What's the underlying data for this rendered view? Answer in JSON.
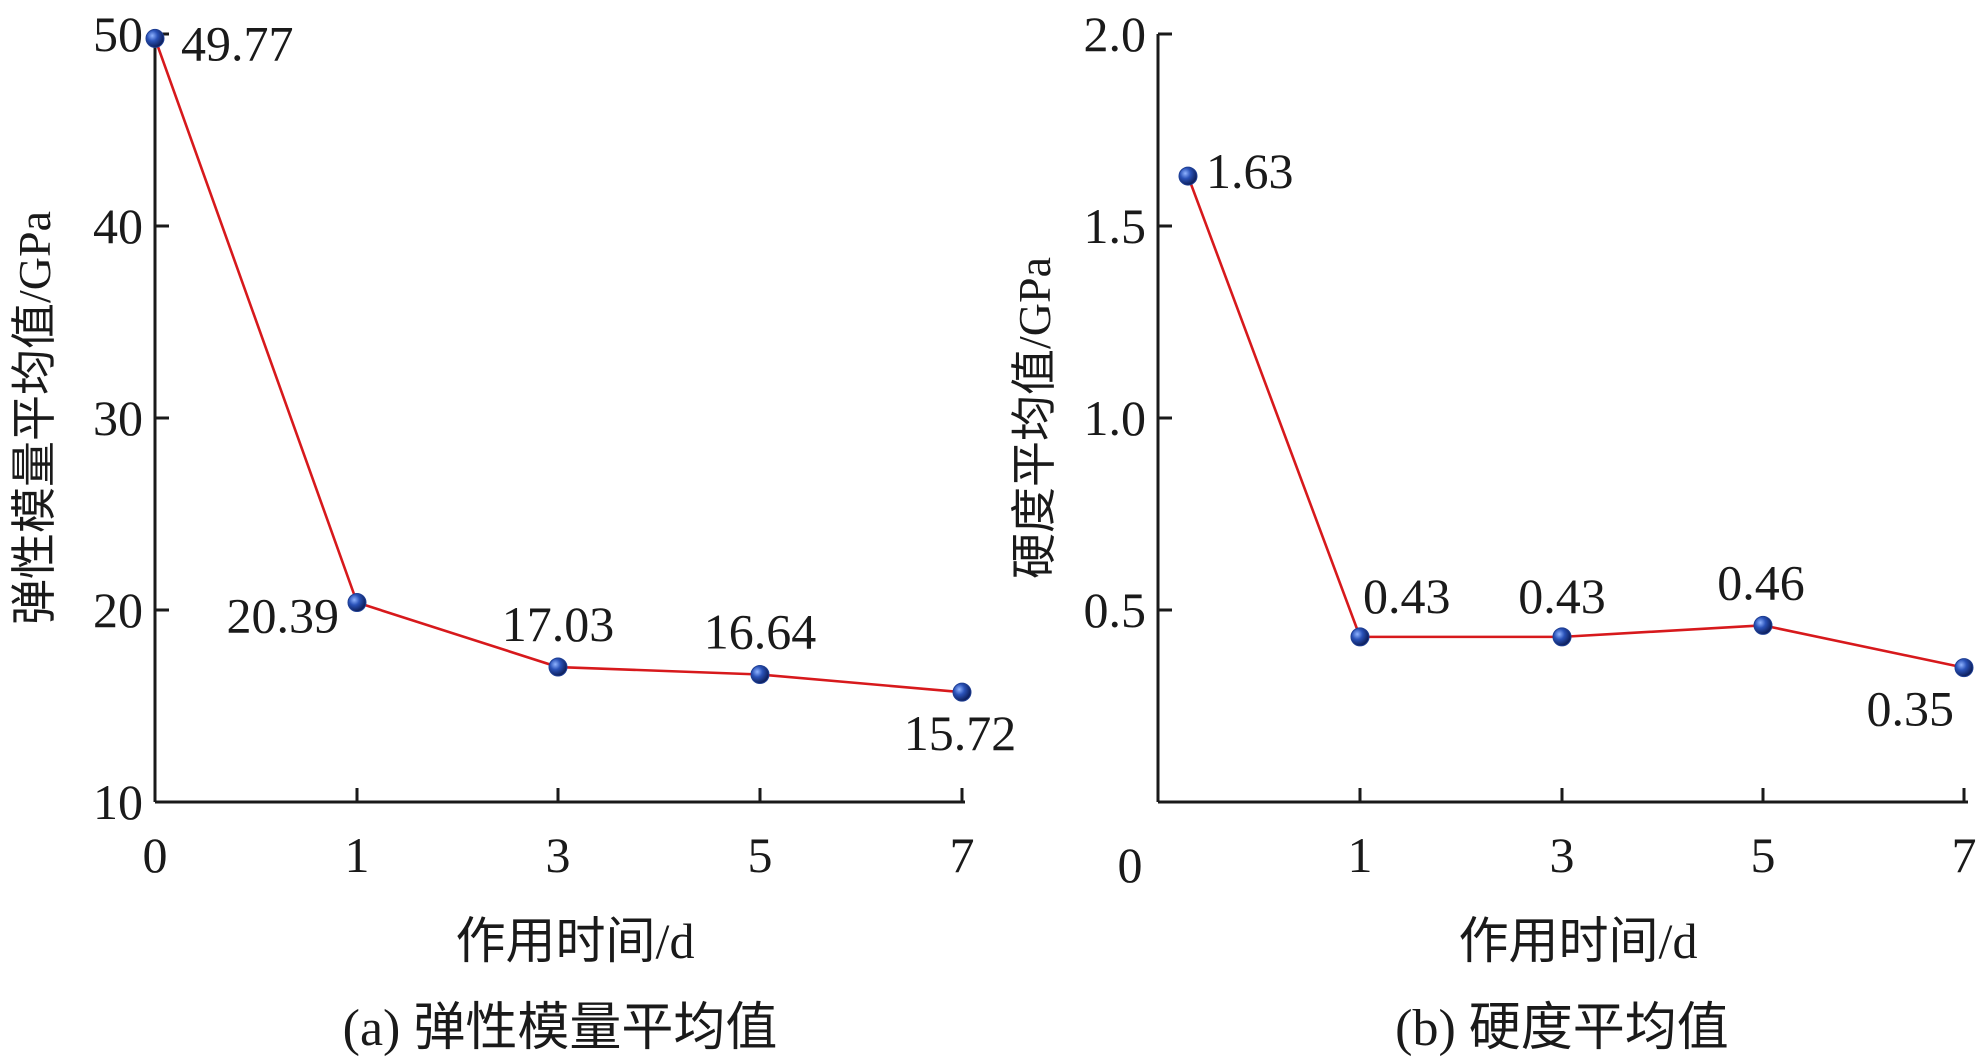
{
  "chart_data": [
    {
      "type": "line",
      "caption": "(a) 弹性模量平均值",
      "xlabel": "作用时间/d",
      "ylabel": "弹性模量平均值/GPa",
      "categories": [
        "0",
        "1",
        "3",
        "5",
        "7"
      ],
      "yticks": [
        "10",
        "20",
        "30",
        "40",
        "50"
      ],
      "ylim": [
        10,
        50
      ],
      "series": [
        {
          "values": [
            49.77,
            20.39,
            17.03,
            16.64,
            15.72
          ]
        }
      ],
      "data_labels": [
        "49.77",
        "20.39",
        "17.03",
        "16.64",
        "15.72"
      ],
      "line_color": "#d7191c",
      "marker_color": "#1f3f94",
      "grid": false
    },
    {
      "type": "line",
      "caption": "(b) 硬度平均值",
      "xlabel": "作用时间/d",
      "ylabel": "硬度平均值/GPa",
      "categories": [
        "0",
        "1",
        "3",
        "5",
        "7"
      ],
      "yticks": [
        "0.5",
        "1.0",
        "1.5",
        "2.0"
      ],
      "ylim": [
        0,
        2.0
      ],
      "series": [
        {
          "values": [
            1.63,
            0.43,
            0.43,
            0.46,
            0.35
          ]
        }
      ],
      "data_labels": [
        "1.63",
        "0.43",
        "0.43",
        "0.46",
        "0.35"
      ],
      "line_color": "#d7191c",
      "marker_color": "#1f3f94",
      "grid": false
    }
  ]
}
